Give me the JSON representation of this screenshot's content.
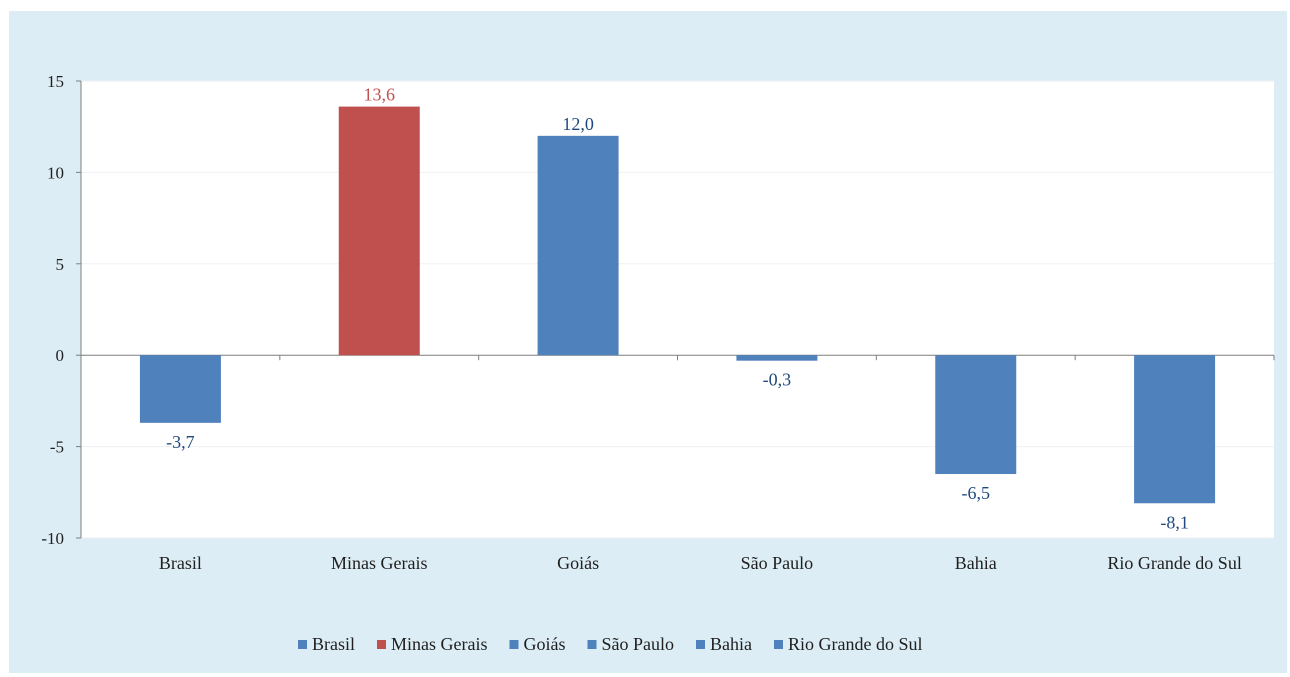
{
  "chart_data": {
    "type": "bar",
    "categories": [
      "Brasil",
      "Minas Gerais",
      "Goiás",
      "São Paulo",
      "Bahia",
      "Rio Grande do Sul"
    ],
    "values": [
      -3.7,
      13.6,
      12.0,
      -0.3,
      -6.5,
      -8.1
    ],
    "data_labels": [
      "-3,7",
      "13,6",
      "12,0",
      "-0,3",
      "-6,5",
      "-8,1"
    ],
    "colors": [
      "#4f81bd",
      "#c0504d",
      "#4f81bd",
      "#4f81bd",
      "#4f81bd",
      "#4f81bd"
    ],
    "label_colors": [
      "#1f497d",
      "#c0504d",
      "#1f497d",
      "#1f497d",
      "#1f497d",
      "#1f497d"
    ],
    "ylim": [
      -10,
      15
    ],
    "yticks": [
      -10,
      -5,
      0,
      5,
      10,
      15
    ],
    "ytick_labels": [
      "-10",
      "-5",
      "0",
      "5",
      "10",
      "15"
    ],
    "legend": [
      "Brasil",
      "Minas Gerais",
      "Goiás",
      "São Paulo",
      "Bahia",
      "Rio Grande do Sul"
    ],
    "legend_position": "bottom",
    "grid": false,
    "background": "#dcedf5",
    "title": "",
    "xlabel": "",
    "ylabel": ""
  }
}
